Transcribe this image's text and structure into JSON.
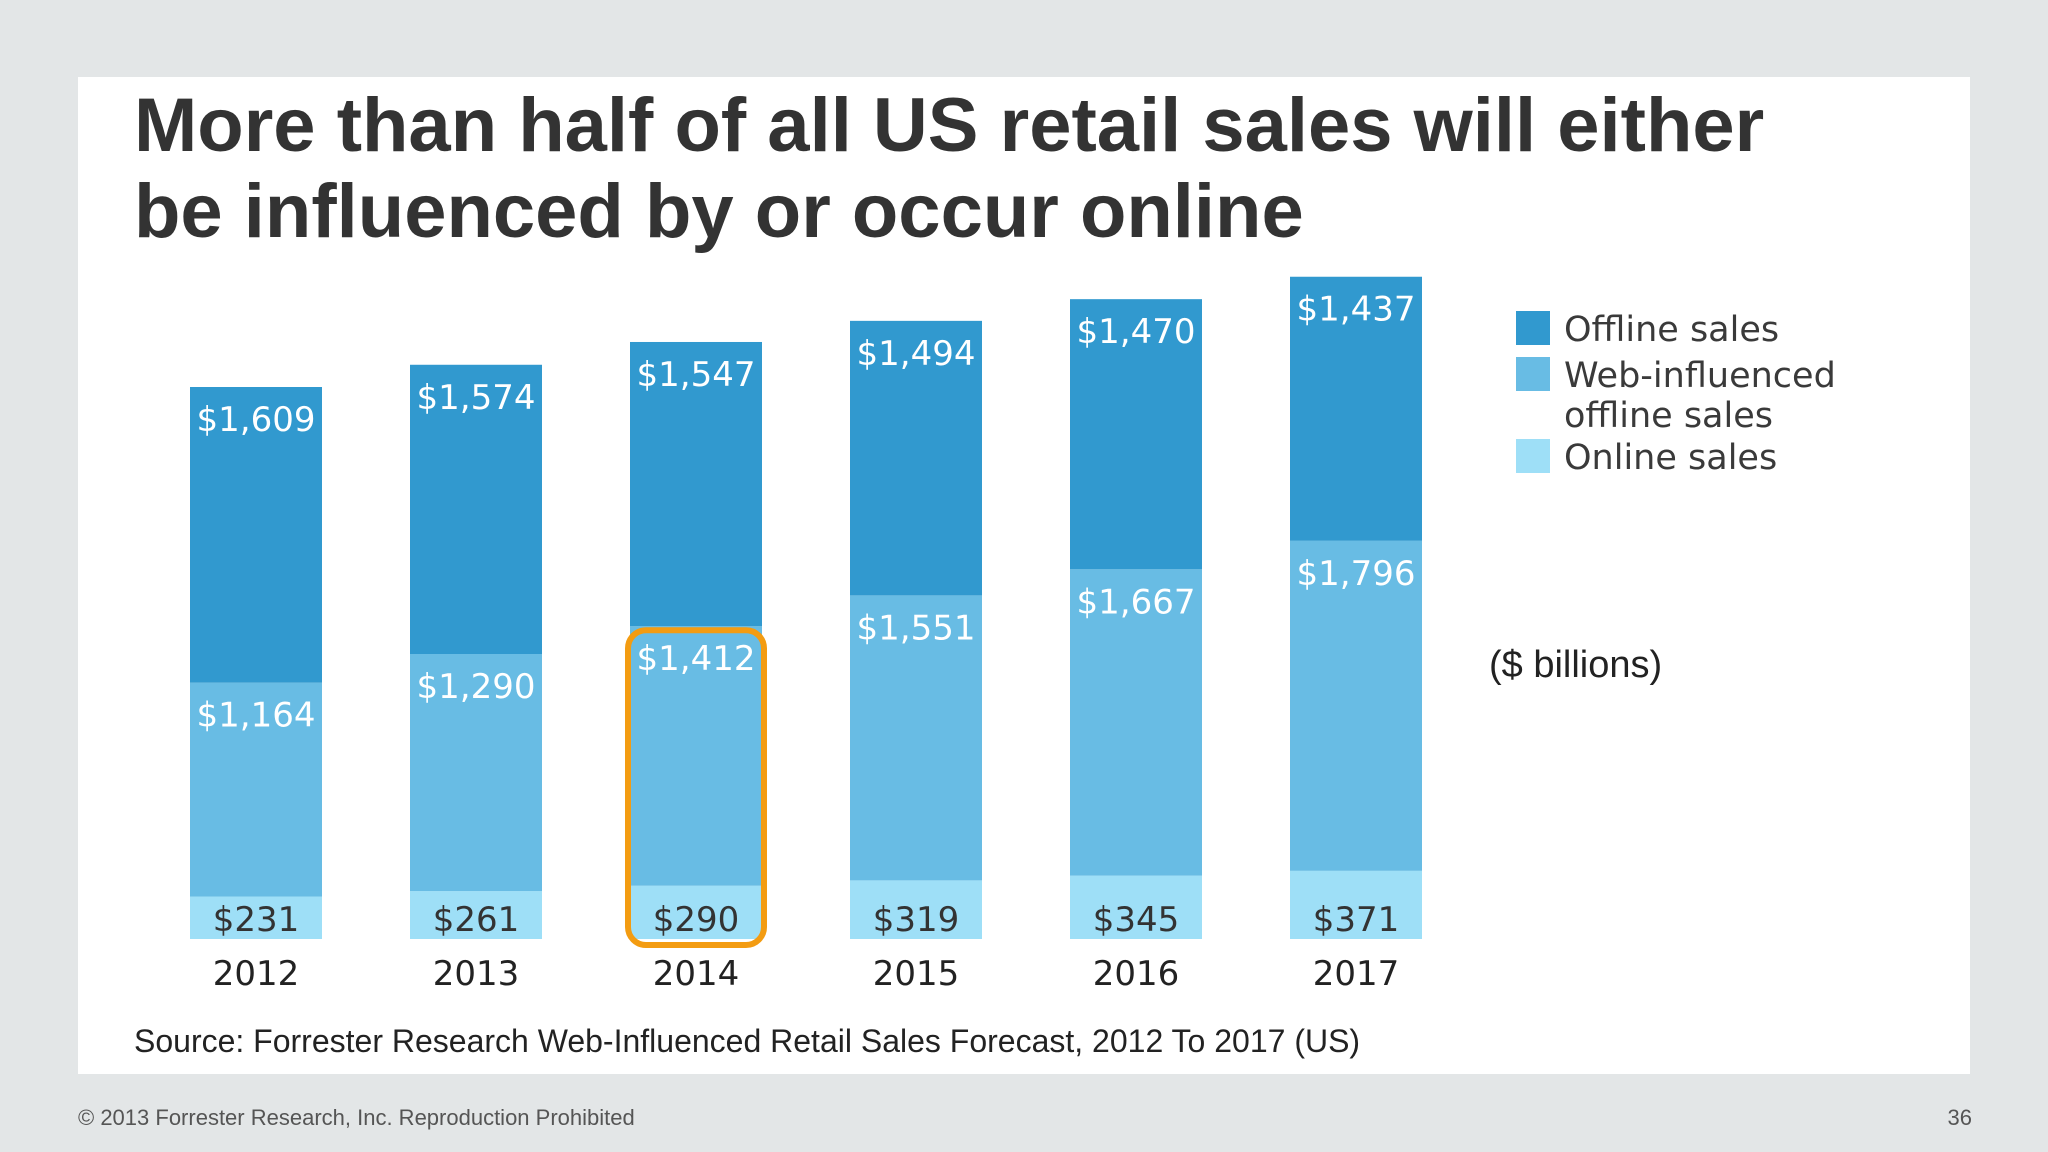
{
  "slide": {
    "title_line1": "More than half of all US retail sales will either",
    "title_line2": "be influenced by or occur online",
    "unit_note": "($ billions)",
    "source": "Source: Forrester Research Web-Influenced Retail Sales Forecast, 2012 To 2017 (US)"
  },
  "footer": {
    "copyright": "© 2013 Forrester Research, Inc. Reproduction Prohibited",
    "page_number": "36"
  },
  "chart_data": {
    "type": "bar",
    "stacked": true,
    "categories": [
      "2012",
      "2013",
      "2014",
      "2015",
      "2016",
      "2017"
    ],
    "series": [
      {
        "name": "Online sales",
        "values": [
          231,
          261,
          290,
          319,
          345,
          371
        ],
        "labels": [
          "$231",
          "$261",
          "$290",
          "$319",
          "$345",
          "$371"
        ],
        "color": "#9edff7"
      },
      {
        "name": "Web-influenced offline sales",
        "values": [
          1164,
          1290,
          1412,
          1551,
          1667,
          1796
        ],
        "labels": [
          "$1,164",
          "$1,290",
          "$1,412",
          "$1,551",
          "$1,667",
          "$1,796"
        ],
        "color": "#68bce4"
      },
      {
        "name": "Offline sales",
        "values": [
          1609,
          1574,
          1547,
          1494,
          1470,
          1437
        ],
        "labels": [
          "$1,609",
          "$1,574",
          "$1,547",
          "$1,494",
          "$1,470",
          "$1,437"
        ],
        "color": "#3199cf"
      }
    ],
    "legend_order": [
      "Offline sales",
      "Web-influenced offline sales",
      "Online sales"
    ],
    "legend_position": "right",
    "highlight": {
      "category": "2014",
      "series": [
        "Online sales",
        "Web-influenced offline sales"
      ],
      "color": "#f39c12"
    },
    "ylim": [
      0,
      3600
    ],
    "grid": false
  }
}
